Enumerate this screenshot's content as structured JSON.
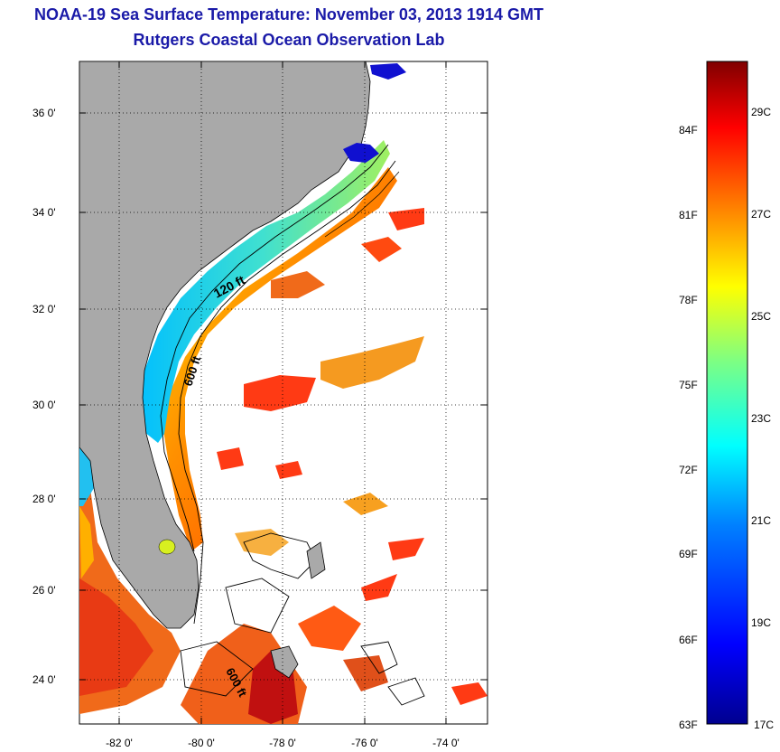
{
  "title": {
    "line1": "NOAA-19 Sea Surface Temperature:  November 03, 2013 1914 GMT",
    "line2": "Rutgers Coastal Ocean Observation Lab"
  },
  "map": {
    "lat_labels": [
      "36 0'",
      "34 0'",
      "32 0'",
      "30 0'",
      "28 0'",
      "26 0'",
      "24 0'"
    ],
    "lon_labels": [
      "-82 0'",
      "-80 0'",
      "-78 0'",
      "-76 0'",
      "-74 0'"
    ],
    "isobaths": [
      {
        "label": "120 ft"
      },
      {
        "label": "600 ft"
      },
      {
        "label": "600 ft"
      }
    ],
    "colors": {
      "land": "#a9a9a9",
      "ocean_no_data": "#ffffff",
      "coast": "#000000"
    }
  },
  "colorbar": {
    "fahrenheit_labels": [
      "84F",
      "81F",
      "78F",
      "75F",
      "72F",
      "69F",
      "66F",
      "63F"
    ],
    "celsius_labels": [
      "29C",
      "27C",
      "25C",
      "23C",
      "21C",
      "19C",
      "17C"
    ],
    "range_c": [
      17,
      30
    ],
    "colors": [
      "#00008f",
      "#0000ff",
      "#0080ff",
      "#00ffff",
      "#80ff80",
      "#ffff00",
      "#ff8000",
      "#ff0000",
      "#800000"
    ]
  }
}
